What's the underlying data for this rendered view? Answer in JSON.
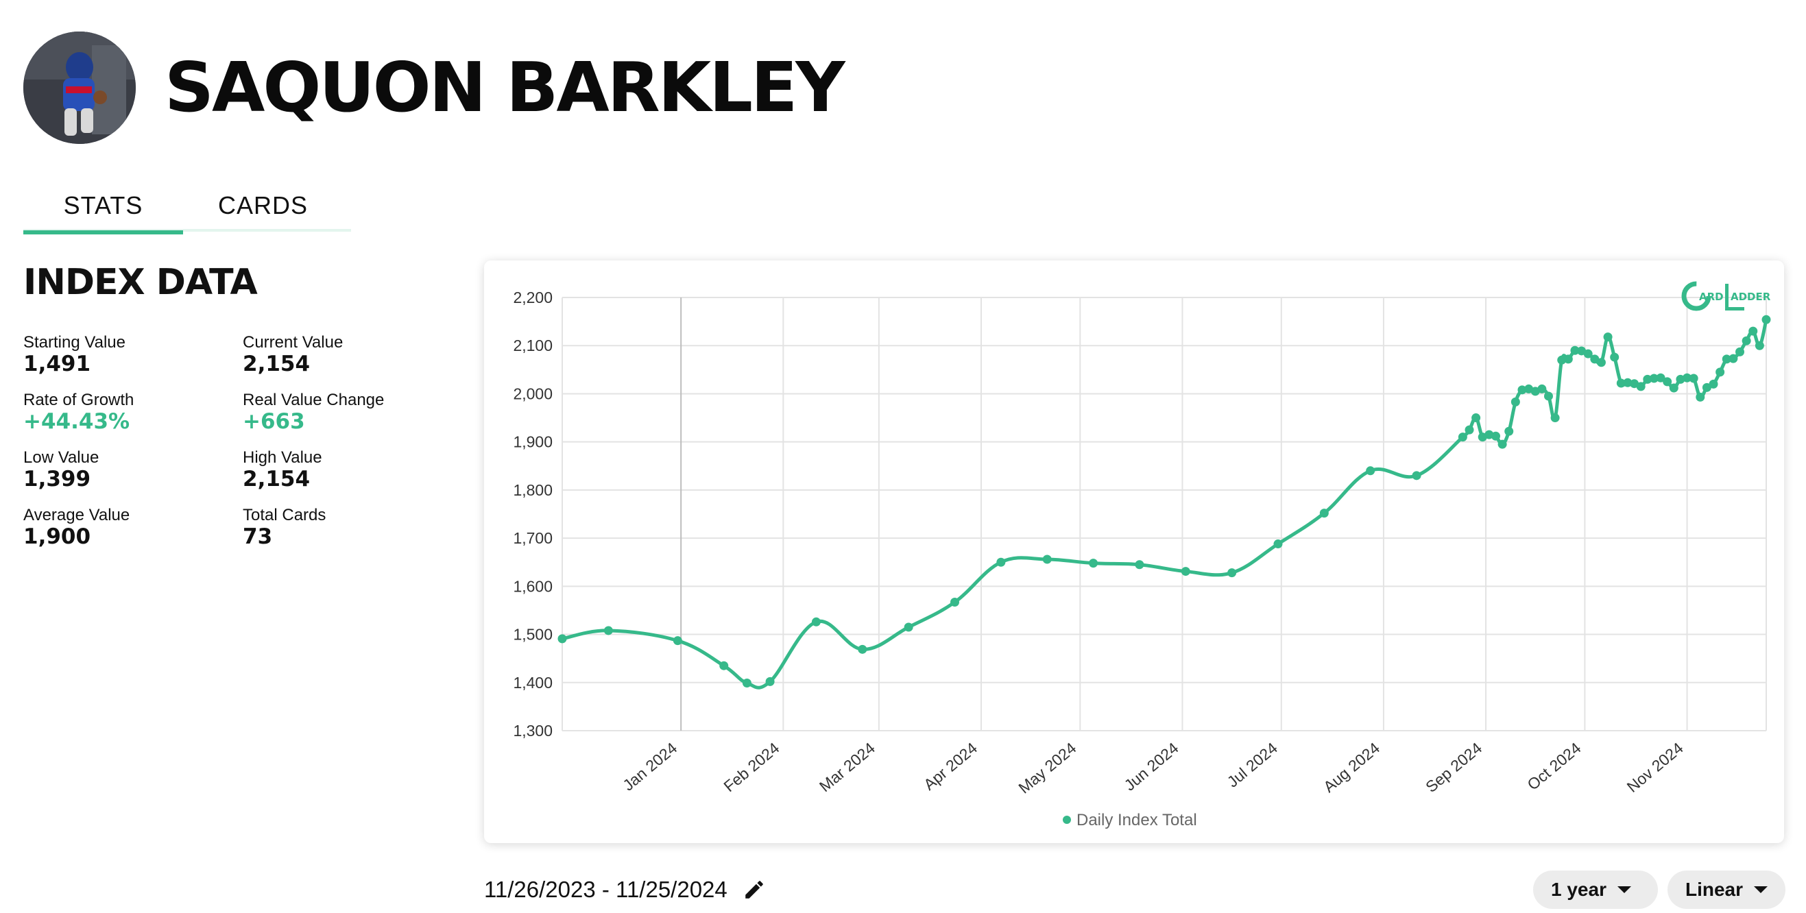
{
  "player": {
    "name": "SAQUON BARKLEY"
  },
  "tabs": [
    {
      "label": "STATS",
      "active": true
    },
    {
      "label": "CARDS",
      "active": false
    }
  ],
  "index": {
    "title": "INDEX DATA",
    "stats": [
      {
        "label": "Starting Value",
        "value": "1,491"
      },
      {
        "label": "Current Value",
        "value": "2,154"
      },
      {
        "label": "Rate of Growth",
        "value": "+44.43%",
        "highlight": true
      },
      {
        "label": "Real Value Change",
        "value": "+663",
        "highlight": true
      },
      {
        "label": "Low Value",
        "value": "1,399"
      },
      {
        "label": "High Value",
        "value": "2,154"
      },
      {
        "label": "Average Value",
        "value": "1,900"
      },
      {
        "label": "Total Cards",
        "value": "73"
      }
    ]
  },
  "chart_data": {
    "type": "line",
    "title": "",
    "xlabel": "",
    "ylabel": "",
    "x_start": "2023-11-26",
    "x_end": "2024-11-25",
    "ylim": [
      1300,
      2200
    ],
    "y_ticks": [
      "1,300",
      "1,400",
      "1,500",
      "1,600",
      "1,700",
      "1,800",
      "1,900",
      "2,000",
      "2,100",
      "2,200"
    ],
    "y_tick_values": [
      1300,
      1400,
      1500,
      1600,
      1700,
      1800,
      1900,
      2000,
      2100,
      2200
    ],
    "x_ticks": [
      {
        "label": "Jan 2024",
        "date": "2024-01-01"
      },
      {
        "label": "Feb 2024",
        "date": "2024-02-01"
      },
      {
        "label": "Mar 2024",
        "date": "2024-03-01"
      },
      {
        "label": "Apr 2024",
        "date": "2024-04-01"
      },
      {
        "label": "May 2024",
        "date": "2024-05-01"
      },
      {
        "label": "Jun 2024",
        "date": "2024-06-01"
      },
      {
        "label": "Jul 2024",
        "date": "2024-07-01"
      },
      {
        "label": "Aug 2024",
        "date": "2024-08-01"
      },
      {
        "label": "Sep 2024",
        "date": "2024-09-01"
      },
      {
        "label": "Oct 2024",
        "date": "2024-10-01"
      },
      {
        "label": "Nov 2024",
        "date": "2024-11-01"
      }
    ],
    "grid": true,
    "legend_position": "bottom",
    "series": [
      {
        "name": "Daily Index Total",
        "color": "#36b98a",
        "points": [
          [
            "2023-11-26",
            1491
          ],
          [
            "2023-12-10",
            1508
          ],
          [
            "2023-12-31",
            1487
          ],
          [
            "2024-01-14",
            1435
          ],
          [
            "2024-01-21",
            1399
          ],
          [
            "2024-01-28",
            1402
          ],
          [
            "2024-02-11",
            1526
          ],
          [
            "2024-02-25",
            1469
          ],
          [
            "2024-03-10",
            1515
          ],
          [
            "2024-03-24",
            1567
          ],
          [
            "2024-04-07",
            1650
          ],
          [
            "2024-04-21",
            1656
          ],
          [
            "2024-05-05",
            1648
          ],
          [
            "2024-05-19",
            1645
          ],
          [
            "2024-06-02",
            1631
          ],
          [
            "2024-06-16",
            1628
          ],
          [
            "2024-06-30",
            1688
          ],
          [
            "2024-07-14",
            1752
          ],
          [
            "2024-07-28",
            1840
          ],
          [
            "2024-08-11",
            1830
          ],
          [
            "2024-08-25",
            1910
          ],
          [
            "2024-08-27",
            1925
          ],
          [
            "2024-08-29",
            1950
          ],
          [
            "2024-08-31",
            1910
          ],
          [
            "2024-09-02",
            1915
          ],
          [
            "2024-09-04",
            1912
          ],
          [
            "2024-09-06",
            1895
          ],
          [
            "2024-09-08",
            1922
          ],
          [
            "2024-09-10",
            1983
          ],
          [
            "2024-09-12",
            2008
          ],
          [
            "2024-09-14",
            2010
          ],
          [
            "2024-09-16",
            2005
          ],
          [
            "2024-09-18",
            2010
          ],
          [
            "2024-09-20",
            1995
          ],
          [
            "2024-09-22",
            1950
          ],
          [
            "2024-09-24",
            2070
          ],
          [
            "2024-09-26",
            2072
          ],
          [
            "2024-09-28",
            2090
          ],
          [
            "2024-09-30",
            2089
          ],
          [
            "2024-10-02",
            2083
          ],
          [
            "2024-10-04",
            2072
          ],
          [
            "2024-10-06",
            2065
          ],
          [
            "2024-10-08",
            2118
          ],
          [
            "2024-10-10",
            2076
          ],
          [
            "2024-10-12",
            2022
          ],
          [
            "2024-10-14",
            2023
          ],
          [
            "2024-10-16",
            2021
          ],
          [
            "2024-10-18",
            2015
          ],
          [
            "2024-10-20",
            2030
          ],
          [
            "2024-10-22",
            2032
          ],
          [
            "2024-10-24",
            2033
          ],
          [
            "2024-10-26",
            2025
          ],
          [
            "2024-10-28",
            2012
          ],
          [
            "2024-10-30",
            2030
          ],
          [
            "2024-11-01",
            2033
          ],
          [
            "2024-11-03",
            2032
          ],
          [
            "2024-11-05",
            1993
          ],
          [
            "2024-11-07",
            2013
          ],
          [
            "2024-11-09",
            2020
          ],
          [
            "2024-11-11",
            2045
          ],
          [
            "2024-11-13",
            2072
          ],
          [
            "2024-11-15",
            2073
          ],
          [
            "2024-11-17",
            2087
          ],
          [
            "2024-11-19",
            2110
          ],
          [
            "2024-11-21",
            2130
          ],
          [
            "2024-11-23",
            2100
          ],
          [
            "2024-11-25",
            2154
          ]
        ]
      }
    ]
  },
  "logo": {
    "text_top": "ARD",
    "text_right": "ADDER"
  },
  "date_range": {
    "text": "11/26/2023 - 11/25/2024"
  },
  "controls": {
    "period": "1 year",
    "scale": "Linear"
  }
}
